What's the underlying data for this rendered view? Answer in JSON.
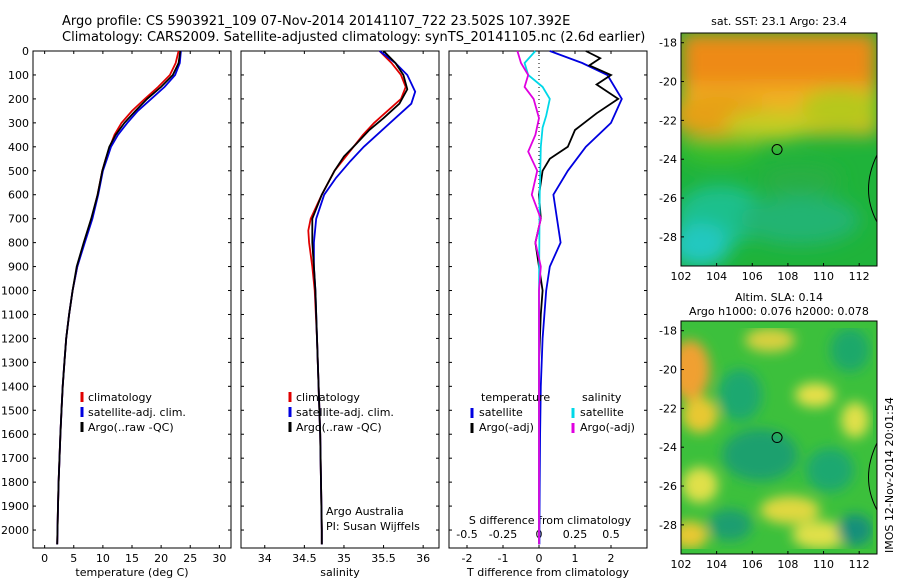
{
  "header": {
    "line1": "Argo profile: CS 5903921_109 07-Nov-2014 20141107_722 23.502S 107.392E",
    "line2": "Climatology: CARS2009. Satellite-adjusted climatology: synTS_20141105.nc (2.6d earlier)"
  },
  "chart_data": [
    {
      "type": "line",
      "xlabel": "temperature (deg C)",
      "xlim": [
        -2,
        32
      ],
      "xticks": [
        "0",
        "5",
        "10",
        "15",
        "20",
        "25",
        "30"
      ],
      "ylim": [
        2075,
        0
      ],
      "yticks": [
        "0",
        "100",
        "200",
        "300",
        "400",
        "500",
        "600",
        "700",
        "800",
        "900",
        "1000",
        "1100",
        "1200",
        "1300",
        "1400",
        "1500",
        "1600",
        "1700",
        "1800",
        "1900",
        "2000"
      ],
      "legend": [
        "climatology",
        "satellite-adj. clim.",
        "Argo(..raw -QC)"
      ],
      "series": [
        {
          "name": "climatology",
          "color": "#e00000",
          "points": [
            [
              23.0,
              0
            ],
            [
              22.5,
              50
            ],
            [
              21.5,
              100
            ],
            [
              19.5,
              150
            ],
            [
              17.2,
              200
            ],
            [
              15.0,
              250
            ],
            [
              13.2,
              300
            ],
            [
              12.0,
              350
            ],
            [
              11.2,
              400
            ],
            [
              10.5,
              450
            ],
            [
              9.9,
              500
            ],
            [
              9.1,
              600
            ],
            [
              8.1,
              700
            ],
            [
              6.8,
              800
            ],
            [
              5.6,
              900
            ],
            [
              4.8,
              1000
            ],
            [
              4.2,
              1100
            ],
            [
              3.7,
              1200
            ],
            [
              3.4,
              1300
            ],
            [
              3.1,
              1400
            ],
            [
              2.9,
              1500
            ],
            [
              2.7,
              1600
            ],
            [
              2.55,
              1700
            ],
            [
              2.4,
              1800
            ],
            [
              2.3,
              1900
            ],
            [
              2.2,
              2000
            ],
            [
              2.15,
              2060
            ]
          ]
        },
        {
          "name": "satellite-adj. clim.",
          "color": "#0000e0",
          "points": [
            [
              23.4,
              0
            ],
            [
              23.2,
              50
            ],
            [
              22.4,
              100
            ],
            [
              20.6,
              150
            ],
            [
              18.3,
              200
            ],
            [
              16.0,
              250
            ],
            [
              14.2,
              300
            ],
            [
              12.6,
              350
            ],
            [
              11.4,
              400
            ],
            [
              10.7,
              450
            ],
            [
              10.0,
              500
            ],
            [
              9.2,
              600
            ],
            [
              8.2,
              700
            ],
            [
              6.9,
              800
            ],
            [
              5.6,
              900
            ],
            [
              4.8,
              1000
            ],
            [
              4.2,
              1100
            ],
            [
              3.7,
              1200
            ],
            [
              3.4,
              1300
            ],
            [
              3.1,
              1400
            ],
            [
              2.9,
              1500
            ],
            [
              2.7,
              1600
            ],
            [
              2.55,
              1700
            ],
            [
              2.4,
              1800
            ],
            [
              2.3,
              1900
            ],
            [
              2.2,
              2000
            ],
            [
              2.15,
              2060
            ]
          ]
        },
        {
          "name": "Argo(..raw -QC)",
          "color": "#000000",
          "points": [
            [
              23.3,
              0
            ],
            [
              23.0,
              50
            ],
            [
              22.0,
              100
            ],
            [
              20.0,
              150
            ],
            [
              17.6,
              200
            ],
            [
              15.6,
              250
            ],
            [
              13.7,
              300
            ],
            [
              12.2,
              350
            ],
            [
              11.1,
              400
            ],
            [
              10.5,
              450
            ],
            [
              9.9,
              500
            ],
            [
              9.1,
              600
            ],
            [
              8.0,
              700
            ],
            [
              6.7,
              800
            ],
            [
              5.5,
              900
            ],
            [
              4.8,
              1000
            ],
            [
              4.2,
              1100
            ],
            [
              3.7,
              1200
            ],
            [
              3.4,
              1300
            ],
            [
              3.1,
              1400
            ],
            [
              2.9,
              1500
            ],
            [
              2.7,
              1600
            ],
            [
              2.55,
              1700
            ],
            [
              2.4,
              1800
            ],
            [
              2.3,
              1900
            ],
            [
              2.2,
              2000
            ],
            [
              2.15,
              2060
            ]
          ]
        }
      ]
    },
    {
      "type": "line",
      "xlabel": "salinity",
      "xlim": [
        33.7,
        36.2
      ],
      "xticks": [
        "34",
        "34.5",
        "35",
        "35.5",
        "36"
      ],
      "ylim": [
        2075,
        0
      ],
      "legend": [
        "climatology",
        "satellite-adj. clim.",
        "Argo(..raw -QC)"
      ],
      "annotation": [
        "Argo Australia",
        "PI: Susan Wijffels"
      ],
      "series": [
        {
          "name": "climatology",
          "color": "#e00000",
          "points": [
            [
              35.45,
              0
            ],
            [
              35.6,
              50
            ],
            [
              35.72,
              100
            ],
            [
              35.78,
              150
            ],
            [
              35.72,
              200
            ],
            [
              35.55,
              250
            ],
            [
              35.38,
              300
            ],
            [
              35.24,
              350
            ],
            [
              35.12,
              400
            ],
            [
              35.0,
              450
            ],
            [
              34.88,
              500
            ],
            [
              34.72,
              600
            ],
            [
              34.58,
              700
            ],
            [
              34.55,
              750
            ],
            [
              34.56,
              800
            ],
            [
              34.6,
              900
            ],
            [
              34.63,
              1000
            ],
            [
              34.66,
              1200
            ],
            [
              34.68,
              1400
            ],
            [
              34.7,
              1600
            ],
            [
              34.71,
              1800
            ],
            [
              34.72,
              2000
            ],
            [
              34.72,
              2060
            ]
          ]
        },
        {
          "name": "satellite-adj. clim.",
          "color": "#0000e0",
          "points": [
            [
              35.45,
              0
            ],
            [
              35.65,
              50
            ],
            [
              35.8,
              100
            ],
            [
              35.9,
              170
            ],
            [
              35.85,
              220
            ],
            [
              35.65,
              280
            ],
            [
              35.45,
              340
            ],
            [
              35.25,
              400
            ],
            [
              35.08,
              460
            ],
            [
              34.9,
              530
            ],
            [
              34.75,
              600
            ],
            [
              34.65,
              700
            ],
            [
              34.62,
              800
            ],
            [
              34.62,
              900
            ],
            [
              34.64,
              1000
            ],
            [
              34.66,
              1200
            ],
            [
              34.68,
              1400
            ],
            [
              34.7,
              1600
            ],
            [
              34.71,
              1800
            ],
            [
              34.72,
              2000
            ],
            [
              34.72,
              2060
            ]
          ]
        },
        {
          "name": "Argo(..raw -QC)",
          "color": "#000000",
          "points": [
            [
              35.5,
              0
            ],
            [
              35.65,
              50
            ],
            [
              35.75,
              100
            ],
            [
              35.8,
              160
            ],
            [
              35.7,
              220
            ],
            [
              35.5,
              280
            ],
            [
              35.32,
              330
            ],
            [
              35.15,
              390
            ],
            [
              35.0,
              440
            ],
            [
              34.88,
              500
            ],
            [
              34.72,
              600
            ],
            [
              34.6,
              700
            ],
            [
              34.6,
              800
            ],
            [
              34.62,
              900
            ],
            [
              34.64,
              1000
            ],
            [
              34.66,
              1200
            ],
            [
              34.68,
              1400
            ],
            [
              34.7,
              1600
            ],
            [
              34.71,
              1800
            ],
            [
              34.72,
              2000
            ],
            [
              34.72,
              2060
            ]
          ]
        }
      ]
    },
    {
      "type": "line",
      "xlabel_top": "S difference from climatology",
      "xticks_top": [
        "-0.5",
        "-0.25",
        "0",
        "0.25",
        "0.5"
      ],
      "xlabel": "T difference from climatology",
      "xlim": [
        -2.5,
        3.0
      ],
      "xticks": [
        "-2",
        "-1",
        "0",
        "1",
        "2"
      ],
      "ylim": [
        2075,
        0
      ],
      "legend": {
        "temperature": [
          "satellite",
          "Argo(-adj)"
        ],
        "salinity": [
          "satellite",
          "Argo(-adj)"
        ]
      },
      "series": [
        {
          "name": "T satellite",
          "color": "#0000e0",
          "points": [
            [
              0.3,
              0
            ],
            [
              1.2,
              50
            ],
            [
              1.9,
              100
            ],
            [
              2.3,
              200
            ],
            [
              2.0,
              300
            ],
            [
              1.3,
              400
            ],
            [
              0.8,
              500
            ],
            [
              0.4,
              600
            ],
            [
              0.5,
              700
            ],
            [
              0.6,
              800
            ],
            [
              0.3,
              900
            ],
            [
              0.2,
              1000
            ],
            [
              0.1,
              1200
            ],
            [
              0.05,
              1400
            ],
            [
              0.03,
              1600
            ],
            [
              0.02,
              1800
            ],
            [
              0.01,
              2000
            ],
            [
              0.01,
              2060
            ]
          ]
        },
        {
          "name": "T Argo(-adj)",
          "color": "#000000",
          "points": [
            [
              1.3,
              0
            ],
            [
              1.7,
              30
            ],
            [
              1.4,
              60
            ],
            [
              2.0,
              100
            ],
            [
              1.6,
              140
            ],
            [
              2.2,
              200
            ],
            [
              1.6,
              260
            ],
            [
              1.0,
              330
            ],
            [
              0.8,
              400
            ],
            [
              0.3,
              450
            ],
            [
              0.1,
              500
            ],
            [
              0.0,
              600
            ],
            [
              0.05,
              700
            ],
            [
              -0.1,
              800
            ],
            [
              0.0,
              900
            ],
            [
              0.1,
              1000
            ],
            [
              0.05,
              1100
            ],
            [
              0.0,
              1300
            ],
            [
              0.0,
              1600
            ],
            [
              0.0,
              1800
            ],
            [
              0.0,
              2000
            ],
            [
              0.0,
              2060
            ]
          ]
        },
        {
          "name": "S satellite",
          "color": "#00d8e8",
          "points": [
            [
              -0.1,
              0
            ],
            [
              -0.4,
              50
            ],
            [
              -0.3,
              100
            ],
            [
              0.1,
              150
            ],
            [
              0.3,
              200
            ],
            [
              0.2,
              270
            ],
            [
              0.1,
              320
            ],
            [
              0.05,
              400
            ],
            [
              0.02,
              600
            ],
            [
              0.0,
              1000
            ],
            [
              0.0,
              2060
            ]
          ]
        },
        {
          "name": "S Argo(-adj)",
          "color": "#e000e0",
          "points": [
            [
              -0.6,
              0
            ],
            [
              -0.5,
              50
            ],
            [
              -0.3,
              100
            ],
            [
              -0.4,
              150
            ],
            [
              -0.15,
              200
            ],
            [
              0.0,
              280
            ],
            [
              -0.1,
              350
            ],
            [
              -0.3,
              420
            ],
            [
              -0.05,
              500
            ],
            [
              -0.2,
              600
            ],
            [
              0.05,
              700
            ],
            [
              -0.1,
              800
            ],
            [
              0.05,
              900
            ],
            [
              0.0,
              1000
            ],
            [
              0.0,
              1500
            ],
            [
              0.0,
              2060
            ]
          ]
        }
      ]
    },
    {
      "type": "heatmap",
      "title": "sat. SST: 23.1  Argo: 23.4",
      "xticks": [
        "102",
        "104",
        "106",
        "108",
        "110",
        "112"
      ],
      "yticks": [
        "-18",
        "-20",
        "-22",
        "-24",
        "-26",
        "-28"
      ],
      "xlim": [
        102,
        113
      ],
      "ylim": [
        -29.5,
        -17.5
      ],
      "marker": {
        "lon": 107.392,
        "lat": -23.502
      }
    },
    {
      "type": "heatmap",
      "title": "Altim. SLA: 0.14",
      "subtitle": "Argo h1000: 0.076 h2000: 0.078",
      "xticks": [
        "102",
        "104",
        "106",
        "108",
        "110",
        "112"
      ],
      "yticks": [
        "-18",
        "-20",
        "-22",
        "-24",
        "-26",
        "-28"
      ],
      "xlim": [
        102,
        113
      ],
      "ylim": [
        -29.5,
        -17.5
      ],
      "marker": {
        "lon": 107.392,
        "lat": -23.502
      }
    }
  ],
  "side_stamp": "IMOS 12-Nov-2014 20:01:54"
}
